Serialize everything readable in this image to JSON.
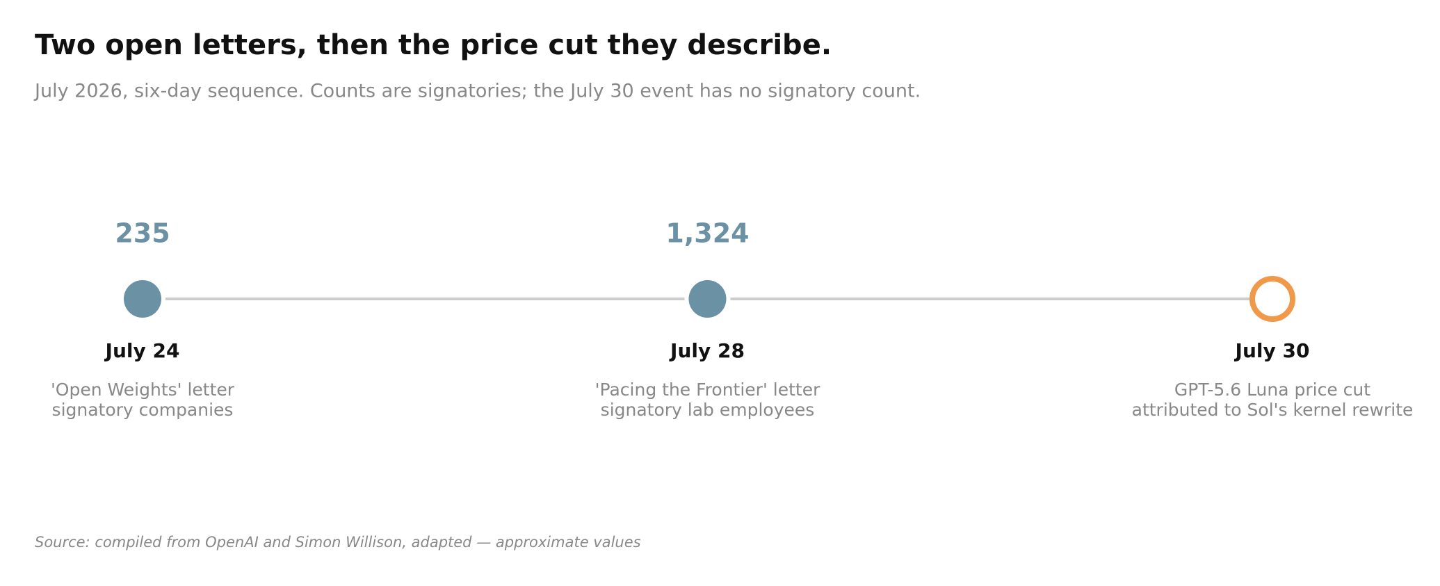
{
  "chart_data": {
    "type": "timeline",
    "title": "Two open letters, then the price cut they describe.",
    "subtitle": "July 2026, six-day sequence. Counts are signatories; the July 30 event has no signatory count.",
    "categories": [
      "July 24",
      "July 28",
      "July 30"
    ],
    "values": [
      235,
      1324,
      null
    ],
    "value_labels": [
      "235",
      "1,324",
      null
    ],
    "descriptions": [
      [
        "'Open Weights' letter",
        "signatory companies"
      ],
      [
        "'Pacing the Frontier' letter",
        "signatory lab employees"
      ],
      [
        "GPT-5.6 Luna price cut",
        "attributed to Sol's kernel rewrite"
      ]
    ],
    "marker_styles": [
      "filled",
      "filled",
      "hollow"
    ],
    "color": "#6b91a5",
    "highlight_color": "#f0994a",
    "source": "Source: compiled from OpenAI and Simon Willison, adapted — approximate values"
  }
}
